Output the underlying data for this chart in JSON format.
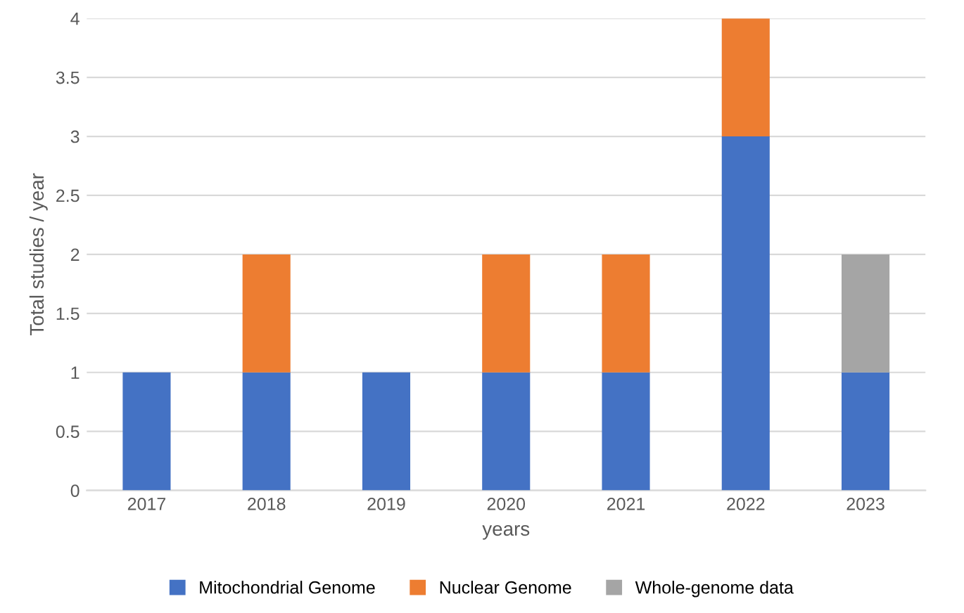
{
  "chart_data": {
    "type": "bar",
    "stacked": true,
    "xlabel": "years",
    "ylabel": "Total studies / year",
    "categories": [
      "2017",
      "2018",
      "2019",
      "2020",
      "2021",
      "2022",
      "2023"
    ],
    "series": [
      {
        "name": "Mitochondrial Genome",
        "color": "#4472c4",
        "values": [
          1,
          1,
          1,
          1,
          1,
          3,
          1
        ]
      },
      {
        "name": "Nuclear Genome",
        "color": "#ed7d31",
        "values": [
          null,
          1,
          null,
          1,
          1,
          1,
          null
        ]
      },
      {
        "name": "Whole-genome data",
        "color": "#a5a5a5",
        "values": [
          null,
          null,
          null,
          null,
          null,
          null,
          1
        ]
      }
    ],
    "ylim": [
      0,
      4
    ],
    "yticks": [
      0,
      0.5,
      1,
      1.5,
      2,
      2.5,
      3,
      3.5,
      4
    ],
    "grid": "y",
    "legend": "bottom"
  }
}
